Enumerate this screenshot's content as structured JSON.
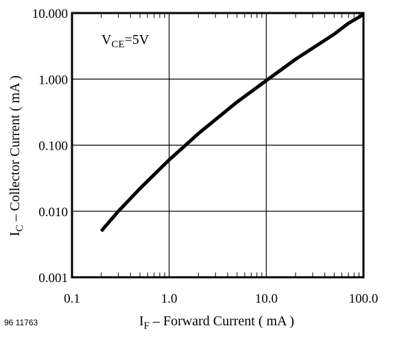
{
  "figure_id": "96 11763",
  "chart_data": {
    "type": "line",
    "x_scale": "log",
    "y_scale": "log",
    "xlim": [
      0.1,
      100.0
    ],
    "ylim": [
      0.001,
      10.0
    ],
    "grid": true,
    "x_tick_labels": [
      "0.1",
      "1.0",
      "10.0",
      "100.0"
    ],
    "y_tick_labels": [
      "0.001",
      "0.010",
      "0.100",
      "1.000",
      "10.000"
    ],
    "xlabel": {
      "main": "I",
      "sub": "F",
      "rest": " – Forward Current ( mA )"
    },
    "ylabel": {
      "main": "I",
      "sub": "C",
      "rest": " – Collector Current ( mA )"
    },
    "annotation": {
      "main": "V",
      "sub": "CE",
      "rest": "=5V"
    },
    "series": [
      {
        "x": [
          0.2,
          0.3,
          0.5,
          1.0,
          2.0,
          5.0,
          10.0,
          20.0,
          50.0,
          70.0,
          100.0
        ],
        "y": [
          0.005,
          0.01,
          0.022,
          0.06,
          0.15,
          0.45,
          0.95,
          2.0,
          4.8,
          7.0,
          9.5
        ]
      }
    ]
  }
}
